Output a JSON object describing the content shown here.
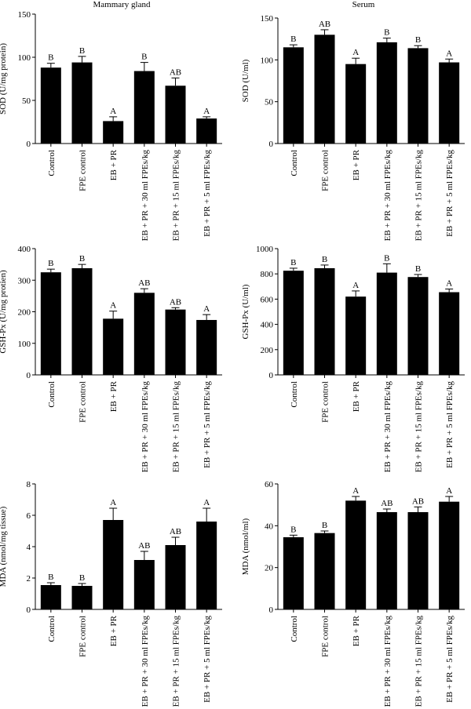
{
  "column_titles": [
    "Mammary gland",
    "Serum"
  ],
  "categories": [
    "Control",
    "FPE control",
    "EB + PR",
    "EB + PR + 30 ml FPEs/kg",
    "EB + PR + 15 ml FPEs/kg",
    "EB + PR + 5 ml FPEs/kg"
  ],
  "chart_data": [
    {
      "type": "bar",
      "title": "Mammary gland",
      "ylabel": "SOD (U/mg protein)",
      "ylim": [
        0,
        150
      ],
      "yticks": [
        0,
        50,
        100,
        150
      ],
      "categories": [
        "Control",
        "FPE control",
        "EB + PR",
        "EB + PR + 30 ml FPEs/kg",
        "EB + PR + 15 ml FPEs/kg",
        "EB + PR + 5 ml FPEs/kg"
      ],
      "values": [
        88,
        94,
        26,
        84,
        67,
        29
      ],
      "errors": [
        5,
        7,
        5,
        10,
        9,
        2
      ],
      "letters": [
        "B",
        "B",
        "A",
        "B",
        "AB",
        "A"
      ]
    },
    {
      "type": "bar",
      "title": "Serum",
      "ylabel": "SOD (U/ml)",
      "ylim": [
        0,
        150
      ],
      "yticks": [
        0,
        50,
        100,
        150
      ],
      "categories": [
        "Control",
        "FPE control",
        "EB + PR",
        "EB + PR + 30 ml FPEs/kg",
        "EB + PR + 15 ml FPEs/kg",
        "EB + PR + 5 ml FPEs/kg"
      ],
      "values": [
        115,
        130,
        95,
        121,
        114,
        97
      ],
      "errors": [
        3,
        6,
        7,
        5,
        3,
        4
      ],
      "letters": [
        "B",
        "AB",
        "A",
        "B",
        "B",
        "A"
      ]
    },
    {
      "type": "bar",
      "title": "",
      "ylabel": "GSH-Px (U/mg protien)",
      "ylim": [
        0,
        400
      ],
      "yticks": [
        0,
        100,
        200,
        300,
        400
      ],
      "categories": [
        "Control",
        "FPE control",
        "EB + PR",
        "EB + PR + 30 ml FPEs/kg",
        "EB + PR + 15 ml FPEs/kg",
        "EB + PR + 5 ml FPEs/kg"
      ],
      "values": [
        325,
        338,
        178,
        260,
        207,
        174
      ],
      "errors": [
        10,
        12,
        24,
        13,
        6,
        17
      ],
      "letters": [
        "B",
        "B",
        "A",
        "AB",
        "AB",
        "A"
      ]
    },
    {
      "type": "bar",
      "title": "",
      "ylabel": "GSH-Px (U/ml)",
      "ylim": [
        0,
        1000
      ],
      "yticks": [
        0,
        200,
        400,
        600,
        800,
        1000
      ],
      "categories": [
        "Control",
        "FPE control",
        "EB + PR",
        "EB + PR + 30 ml FPEs/kg",
        "EB + PR + 15 ml FPEs/kg",
        "EB + PR + 5 ml FPEs/kg"
      ],
      "values": [
        825,
        845,
        620,
        810,
        775,
        655
      ],
      "errors": [
        20,
        25,
        45,
        70,
        20,
        25
      ],
      "letters": [
        "B",
        "B",
        "A",
        "B",
        "B",
        "A"
      ]
    },
    {
      "type": "bar",
      "title": "",
      "ylabel": "MDA (nmol/mg tissue)",
      "ylim": [
        0,
        8
      ],
      "yticks": [
        0,
        2,
        4,
        6,
        8
      ],
      "categories": [
        "Control",
        "FPE control",
        "EB + PR",
        "EB + PR + 30 ml FPEs/kg",
        "EB + PR + 15 ml FPEs/kg",
        "EB + PR + 5 ml FPEs/kg"
      ],
      "values": [
        1.55,
        1.5,
        5.7,
        3.15,
        4.1,
        5.6
      ],
      "errors": [
        0.15,
        0.15,
        0.75,
        0.55,
        0.5,
        0.85
      ],
      "letters": [
        "B",
        "B",
        "A",
        "AB",
        "AB",
        "A"
      ]
    },
    {
      "type": "bar",
      "title": "",
      "ylabel": "MDA (nmol/ml)",
      "ylim": [
        0,
        60
      ],
      "yticks": [
        0,
        20,
        40,
        60
      ],
      "categories": [
        "Control",
        "FPE control",
        "EB + PR",
        "EB + PR + 30 ml FPEs/kg",
        "EB + PR + 15 ml FPEs/kg",
        "EB + PR + 5 ml FPEs/kg"
      ],
      "values": [
        34.5,
        36.5,
        52,
        46.5,
        46.5,
        51.5
      ],
      "errors": [
        1,
        1,
        2,
        1.5,
        2.5,
        2.5
      ],
      "letters": [
        "B",
        "B",
        "A",
        "AB",
        "AB",
        "A"
      ]
    }
  ],
  "colors": {
    "bar": "#000000",
    "axis": "#000000",
    "background": "#ffffff"
  }
}
